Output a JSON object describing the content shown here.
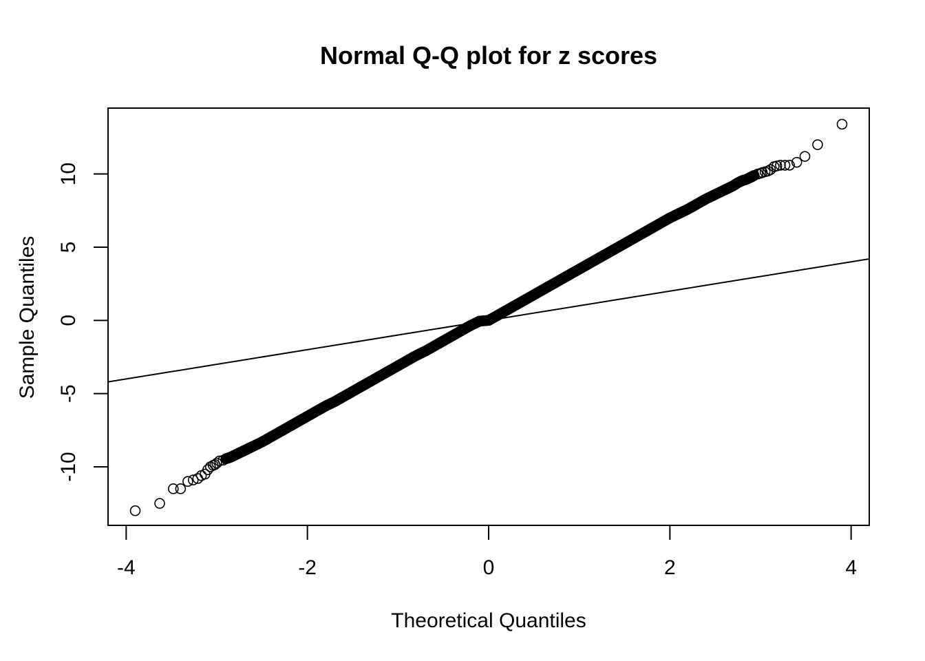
{
  "chart_data": {
    "type": "scatter",
    "title": "Normal Q-Q plot for z scores",
    "xlabel": "Theoretical Quantiles",
    "ylabel": "Sample Quantiles",
    "xlim": [
      -4.2,
      4.2
    ],
    "ylim": [
      -14,
      14.5
    ],
    "xticks": [
      -4,
      -2,
      0,
      2,
      4
    ],
    "xtick_labels": [
      "-4",
      "-2",
      "0",
      "2",
      "4"
    ],
    "yticks": [
      -10,
      -5,
      0,
      5,
      10
    ],
    "ytick_labels": [
      "-10",
      "-5",
      "0",
      "5",
      "10"
    ],
    "grid": false,
    "series": [
      {
        "kind": "points",
        "marker": "open-circle",
        "x": [
          -3.9,
          -3.63,
          -3.48,
          -3.4,
          -3.32,
          -3.26,
          -3.21,
          -3.17,
          -3.13,
          -3.1,
          -3.07,
          -3.04,
          -3.02,
          -3.0,
          -2.97,
          -2.93,
          -2.9,
          -2.85,
          -2.8,
          -2.75,
          -2.7,
          -2.65,
          -2.6,
          -2.5,
          -2.4,
          -2.3,
          -2.2,
          -2.1,
          -2.0,
          -1.9,
          -1.8,
          -1.7,
          -1.6,
          -1.5,
          -1.4,
          -1.3,
          -1.2,
          -1.1,
          -1.0,
          -0.9,
          -0.8,
          -0.7,
          -0.6,
          -0.5,
          -0.4,
          -0.3,
          -0.2,
          -0.1,
          0.0,
          0.1,
          0.2,
          0.3,
          0.4,
          0.5,
          0.6,
          0.7,
          0.8,
          0.9,
          1.0,
          1.1,
          1.2,
          1.3,
          1.4,
          1.5,
          1.6,
          1.7,
          1.8,
          1.9,
          2.0,
          2.1,
          2.2,
          2.3,
          2.4,
          2.5,
          2.6,
          2.65,
          2.7,
          2.75,
          2.8,
          2.85,
          2.9,
          2.93,
          2.97,
          3.0,
          3.02,
          3.05,
          3.08,
          3.11,
          3.15,
          3.18,
          3.22,
          3.27,
          3.32,
          3.4,
          3.49,
          3.63,
          3.9
        ],
        "y": [
          -13.0,
          -12.5,
          -11.5,
          -11.5,
          -11.0,
          -10.9,
          -10.8,
          -10.6,
          -10.5,
          -10.2,
          -10.0,
          -9.9,
          -9.85,
          -9.75,
          -9.6,
          -9.55,
          -9.45,
          -9.35,
          -9.2,
          -9.05,
          -8.9,
          -8.75,
          -8.6,
          -8.3,
          -7.95,
          -7.6,
          -7.25,
          -6.9,
          -6.55,
          -6.2,
          -5.85,
          -5.55,
          -5.2,
          -4.85,
          -4.5,
          -4.15,
          -3.8,
          -3.45,
          -3.1,
          -2.75,
          -2.4,
          -2.1,
          -1.75,
          -1.4,
          -1.05,
          -0.7,
          -0.35,
          -0.05,
          0.0,
          0.35,
          0.7,
          1.05,
          1.4,
          1.75,
          2.1,
          2.45,
          2.8,
          3.15,
          3.5,
          3.85,
          4.2,
          4.55,
          4.9,
          5.25,
          5.6,
          5.95,
          6.3,
          6.65,
          7.0,
          7.3,
          7.6,
          7.95,
          8.3,
          8.6,
          8.9,
          9.05,
          9.2,
          9.4,
          9.55,
          9.65,
          9.8,
          9.9,
          10.0,
          10.05,
          10.1,
          10.15,
          10.2,
          10.3,
          10.5,
          10.55,
          10.6,
          10.6,
          10.6,
          10.8,
          11.2,
          12.0,
          13.4
        ]
      },
      {
        "kind": "reference-line",
        "x": [
          -4.2,
          4.2
        ],
        "y": [
          -4.2,
          4.2
        ]
      }
    ]
  }
}
